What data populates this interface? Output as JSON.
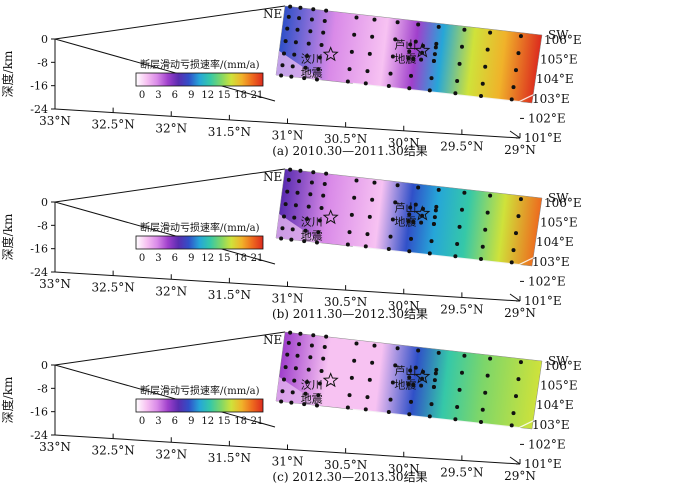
{
  "chart_data": [
    {
      "type": "heatmap",
      "panel": "a",
      "caption": "(a) 2010.30—2011.30结果",
      "quantity": "断层滑动亏损速率/(mm/a)",
      "colorbar": {
        "ticks": [
          "0",
          "3",
          "6",
          "9",
          "12",
          "15",
          "18",
          "21"
        ],
        "range": [
          0,
          21
        ]
      },
      "stops": [
        {
          "pos": 0.0,
          "v": 9
        },
        {
          "pos": 0.2,
          "v": 3
        },
        {
          "pos": 0.4,
          "v": 1
        },
        {
          "pos": 0.52,
          "v": 6
        },
        {
          "pos": 0.62,
          "v": 11
        },
        {
          "pos": 0.74,
          "v": 15
        },
        {
          "pos": 0.86,
          "v": 18
        },
        {
          "pos": 1.0,
          "v": 21
        }
      ]
    },
    {
      "type": "heatmap",
      "panel": "b",
      "caption": "(b) 2011.30—2012.30结果",
      "quantity": "断层滑动亏损速率/(mm/a)",
      "colorbar": {
        "ticks": [
          "0",
          "3",
          "6",
          "9",
          "12",
          "15",
          "18",
          "21"
        ],
        "range": [
          0,
          21
        ]
      },
      "stops": [
        {
          "pos": 0.0,
          "v": 7
        },
        {
          "pos": 0.18,
          "v": 3
        },
        {
          "pos": 0.38,
          "v": 1
        },
        {
          "pos": 0.5,
          "v": 8
        },
        {
          "pos": 0.6,
          "v": 11
        },
        {
          "pos": 0.72,
          "v": 13
        },
        {
          "pos": 0.86,
          "v": 15
        },
        {
          "pos": 1.0,
          "v": 20
        }
      ]
    },
    {
      "type": "heatmap",
      "panel": "c",
      "caption": "(c) 2012.30—2013.30结果",
      "quantity": "断层滑动亏损速率/(mm/a)",
      "colorbar": {
        "ticks": [
          "0",
          "3",
          "6",
          "9",
          "12",
          "15",
          "18",
          "21"
        ],
        "range": [
          0,
          21
        ]
      },
      "stops": [
        {
          "pos": 0.0,
          "v": 5
        },
        {
          "pos": 0.18,
          "v": 2
        },
        {
          "pos": 0.38,
          "v": 1
        },
        {
          "pos": 0.52,
          "v": 9
        },
        {
          "pos": 0.64,
          "v": 12
        },
        {
          "pos": 0.78,
          "v": 14
        },
        {
          "pos": 1.0,
          "v": 16
        }
      ]
    }
  ],
  "axes": {
    "depth_label": "深度/km",
    "depth_ticks": [
      "0",
      "-8",
      "-16",
      "-24"
    ],
    "lat_ticks": [
      "33°N",
      "32.5°N",
      "32°N",
      "31.5°N",
      "31°N",
      "30.5°N",
      "30°N",
      "29.5°N",
      "29°N"
    ],
    "lon_ticks": [
      "106°E",
      "105°E",
      "104°E",
      "103°E",
      "102°E",
      "101°E"
    ]
  },
  "annotations": {
    "ne": "NE",
    "sw": "SW",
    "wenchuan": [
      "汶川",
      "地震"
    ],
    "lushan": [
      "芦山",
      "地震"
    ]
  },
  "colormap": [
    "#ffffff",
    "#f7c2f2",
    "#d98ae8",
    "#a040cc",
    "#5a2cb0",
    "#3050c8",
    "#26a6d8",
    "#35c8a8",
    "#7cd66a",
    "#cfe23a",
    "#f0b22a",
    "#ee6a1e",
    "#dc2a1e"
  ]
}
